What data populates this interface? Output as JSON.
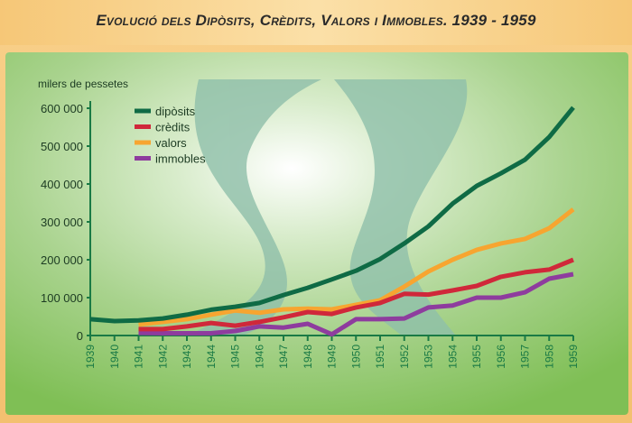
{
  "title": "Evolució dels Dipòsits, Crèdits, Valors i Immobles. 1939 - 1959",
  "chart_data": {
    "type": "line",
    "title": "Evolució dels Dipòsits, Crèdits, Valors i Immobles. 1939 - 1959",
    "ylabel": "milers de pessetes",
    "xlabel": "",
    "ylim": [
      0,
      600000
    ],
    "yticks": [
      0,
      100000,
      200000,
      300000,
      400000,
      500000,
      600000
    ],
    "ytick_labels": [
      "0",
      "100 000",
      "200 000",
      "300 000",
      "400 000",
      "500 000",
      "600 000"
    ],
    "x": [
      1939,
      1940,
      1941,
      1942,
      1943,
      1944,
      1945,
      1946,
      1947,
      1948,
      1949,
      1950,
      1951,
      1952,
      1953,
      1954,
      1955,
      1956,
      1957,
      1958,
      1959
    ],
    "legend_position": "top-left",
    "grid": false,
    "series": [
      {
        "name": "dipòsits",
        "color": "#0f6b45",
        "values": [
          43000,
          38000,
          40000,
          45000,
          55000,
          68000,
          76000,
          86000,
          107000,
          126000,
          148000,
          171000,
          202000,
          243000,
          288000,
          348000,
          395000,
          428000,
          464000,
          524000,
          602000
        ]
      },
      {
        "name": "crèdits",
        "color": "#d0283a",
        "values": [
          null,
          null,
          17000,
          17000,
          24000,
          33000,
          26000,
          36000,
          48000,
          62000,
          57000,
          74000,
          86000,
          110000,
          108000,
          119000,
          131000,
          155000,
          167000,
          174000,
          200000
        ]
      },
      {
        "name": "valors",
        "color": "#f7a530",
        "values": [
          null,
          null,
          29000,
          36000,
          43000,
          55000,
          66000,
          60000,
          69000,
          71000,
          69000,
          81000,
          93000,
          129000,
          169000,
          200000,
          226000,
          243000,
          255000,
          283000,
          333000
        ]
      },
      {
        "name": "immobles",
        "color": "#8e3c9e",
        "values": [
          null,
          null,
          7000,
          6000,
          6000,
          6000,
          12000,
          24000,
          21000,
          31000,
          3000,
          43000,
          43000,
          45000,
          74000,
          79000,
          100000,
          100000,
          114000,
          150000,
          162000
        ]
      }
    ]
  }
}
